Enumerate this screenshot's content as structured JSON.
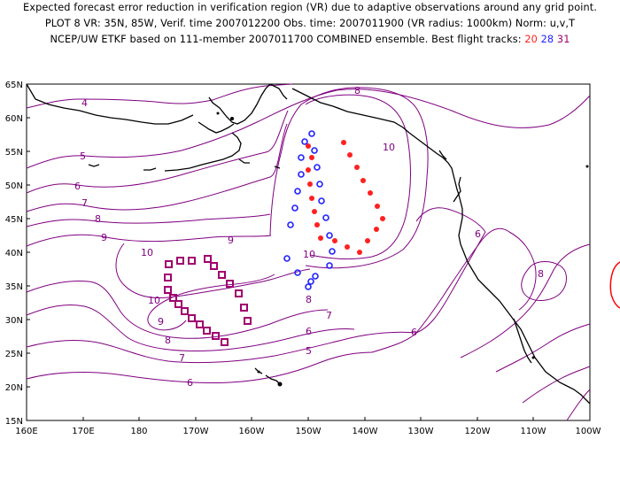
{
  "title": {
    "line1": "Expected forecast error reduction in verification region (VR) due to adaptive observations around any grid point.",
    "line2": "PLOT 8 VR: 35N, 85W, Verif. time 2007012200 Obs. time: 2007011900 (VR radius: 1000km) Norm: u,v,T",
    "line3_prefix": "NCEP/UW ETKF based on 111-member 2007011700 COMBINED ensemble.  Best flight tracks:",
    "track_a": "20",
    "track_b": "28",
    "track_c": "31"
  },
  "axes": {
    "lat_labels": [
      "65N",
      "60N",
      "55N",
      "50N",
      "45N",
      "40N",
      "35N",
      "30N",
      "25N",
      "20N",
      "15N"
    ],
    "lon_labels": [
      "160E",
      "170E",
      "180",
      "170W",
      "160W",
      "150W",
      "140W",
      "130W",
      "120W",
      "110W",
      "100W"
    ]
  },
  "contour_labels": [
    "4",
    "5",
    "6",
    "7",
    "8",
    "9",
    "10",
    "10",
    "9",
    "8",
    "7",
    "6",
    "5",
    "6",
    "8",
    "9",
    "10",
    "10",
    "6",
    "6",
    "8",
    "7",
    "8"
  ],
  "tracks": [
    {
      "id": "20",
      "marker": "dot",
      "color": "#ff2020"
    },
    {
      "id": "28",
      "marker": "ring",
      "color": "#2020ff"
    },
    {
      "id": "31",
      "marker": "square",
      "color": "#a0006e"
    }
  ],
  "colors": {
    "contour": "#800080",
    "coast": "#000000",
    "track20": "#ff2020",
    "track28": "#2020ff",
    "track31": "#a0006e"
  }
}
